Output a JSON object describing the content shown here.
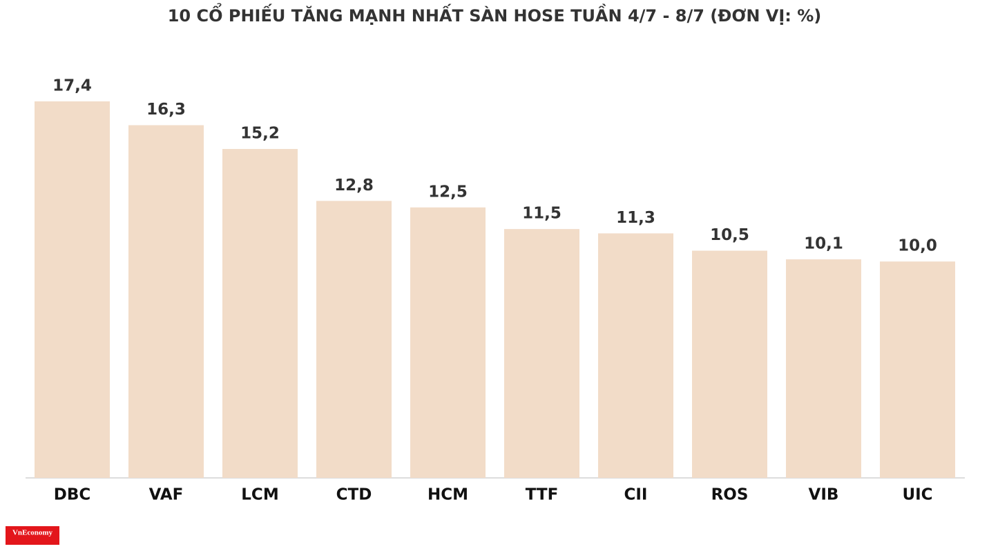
{
  "chart_data": {
    "type": "bar",
    "title": "10 CỔ PHIẾU TĂNG MẠNH NHẤT SÀN HOSE TUẦN 4/7 - 8/7 (ĐƠN VỊ: %)",
    "categories": [
      "DBC",
      "VAF",
      "LCM",
      "CTD",
      "HCM",
      "TTF",
      "CII",
      "ROS",
      "VIB",
      "UIC"
    ],
    "values": [
      17.4,
      16.3,
      15.2,
      12.8,
      12.5,
      11.5,
      11.3,
      10.5,
      10.1,
      10.0
    ],
    "value_labels": [
      "17,4",
      "16,3",
      "15,2",
      "12,8",
      "12,5",
      "11,5",
      "11,3",
      "10,5",
      "10,1",
      "10,0"
    ],
    "color": "#f2dcc8"
  },
  "logo": "VnEconomy"
}
